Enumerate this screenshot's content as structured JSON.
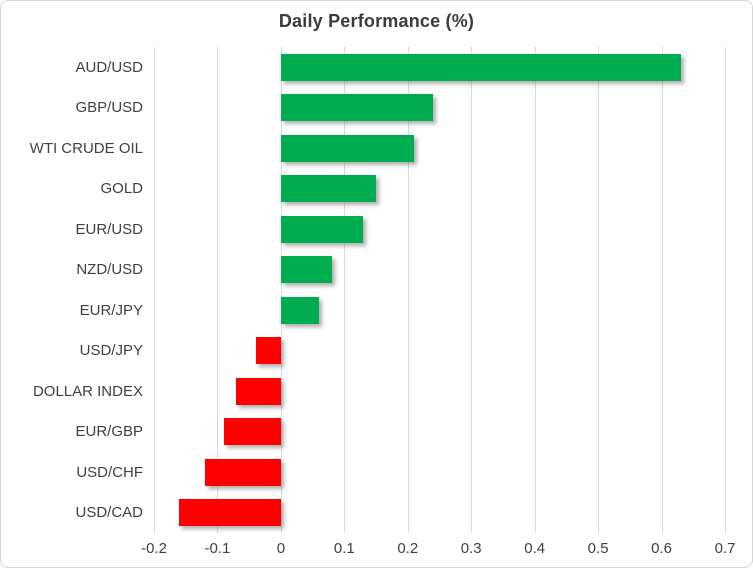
{
  "chart_data": {
    "type": "bar",
    "orientation": "horizontal",
    "title": "Daily Performance (%)",
    "categories": [
      "AUD/USD",
      "GBP/USD",
      "WTI CRUDE OIL",
      "GOLD",
      "EUR/USD",
      "NZD/USD",
      "EUR/JPY",
      "USD/JPY",
      "DOLLAR INDEX",
      "EUR/GBP",
      "USD/CHF",
      "USD/CAD"
    ],
    "values": [
      0.63,
      0.24,
      0.21,
      0.15,
      0.13,
      0.08,
      0.06,
      -0.04,
      -0.07,
      -0.09,
      -0.12,
      -0.16
    ],
    "xlim": [
      -0.2,
      0.7
    ],
    "xticks": [
      -0.2,
      -0.1,
      0,
      0.1,
      0.2,
      0.3,
      0.4,
      0.5,
      0.6,
      0.7
    ],
    "xtick_labels": [
      "-0.2",
      "-0.1",
      "0",
      "0.1",
      "0.2",
      "0.3",
      "0.4",
      "0.5",
      "0.6",
      "0.7"
    ],
    "grid": "vertical",
    "legend": "none",
    "colors": {
      "positive": "#00ac50",
      "negative": "#ff0000",
      "gridline": "#d9d9d9",
      "text": "#404040",
      "title": "#3b3b3b"
    }
  }
}
